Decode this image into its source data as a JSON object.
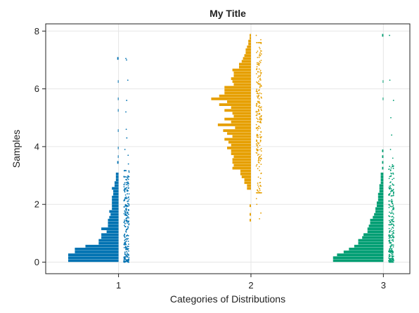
{
  "chart_data": {
    "type": "raincloud",
    "title": "My Title",
    "xlabel": "Categories of Distributions",
    "ylabel": "Samples",
    "categories": [
      "1",
      "2",
      "3"
    ],
    "x_ticks": [
      1,
      2,
      3
    ],
    "y_ticks": [
      0,
      2,
      4,
      6,
      8
    ],
    "xlim": [
      0.45,
      3.2
    ],
    "ylim": [
      -0.4,
      8.25
    ],
    "grid": true,
    "bin_width": 0.1,
    "series": [
      {
        "category": 1,
        "color": "#0072b2",
        "bins": [
          {
            "y": 0.0,
            "width": 0.38
          },
          {
            "y": 0.1,
            "width": 0.38
          },
          {
            "y": 0.2,
            "width": 0.38
          },
          {
            "y": 0.3,
            "width": 0.33
          },
          {
            "y": 0.4,
            "width": 0.33
          },
          {
            "y": 0.5,
            "width": 0.25
          },
          {
            "y": 0.6,
            "width": 0.15
          },
          {
            "y": 0.7,
            "width": 0.15
          },
          {
            "y": 0.8,
            "width": 0.13
          },
          {
            "y": 0.9,
            "width": 0.13
          },
          {
            "y": 1.0,
            "width": 0.09
          },
          {
            "y": 1.1,
            "width": 0.13
          },
          {
            "y": 1.2,
            "width": 0.08
          },
          {
            "y": 1.3,
            "width": 0.08
          },
          {
            "y": 1.4,
            "width": 0.08
          },
          {
            "y": 1.5,
            "width": 0.07
          },
          {
            "y": 1.6,
            "width": 0.06
          },
          {
            "y": 1.7,
            "width": 0.07
          },
          {
            "y": 1.8,
            "width": 0.05
          },
          {
            "y": 1.9,
            "width": 0.05
          },
          {
            "y": 2.0,
            "width": 0.05
          },
          {
            "y": 2.1,
            "width": 0.05
          },
          {
            "y": 2.2,
            "width": 0.05
          },
          {
            "y": 2.3,
            "width": 0.04
          },
          {
            "y": 2.4,
            "width": 0.04
          },
          {
            "y": 2.5,
            "width": 0.05
          },
          {
            "y": 2.6,
            "width": 0.03
          },
          {
            "y": 2.7,
            "width": 0.03
          },
          {
            "y": 2.8,
            "width": 0.02
          },
          {
            "y": 2.9,
            "width": 0.02
          },
          {
            "y": 3.0,
            "width": 0.02
          },
          {
            "y": 3.4,
            "width": 0.01
          },
          {
            "y": 3.6,
            "width": 0.005
          },
          {
            "y": 3.9,
            "width": 0.005
          },
          {
            "y": 4.5,
            "width": 0.005
          },
          {
            "y": 5.2,
            "width": 0.005
          },
          {
            "y": 5.6,
            "width": 0.005
          },
          {
            "y": 6.2,
            "width": 0.005
          },
          {
            "y": 7.0,
            "width": 0.01
          }
        ],
        "dots_dense_range": [
          0.0,
          3.2
        ],
        "dots_sparse": [
          3.4,
          3.7,
          3.9,
          4.3,
          4.6,
          5.2,
          5.6,
          6.3,
          7.0,
          7.05
        ]
      },
      {
        "category": 2,
        "color": "#e69f00",
        "bins": [
          {
            "y": 1.4,
            "width": 0.01
          },
          {
            "y": 1.6,
            "width": 0.01
          },
          {
            "y": 1.9,
            "width": 0.01
          },
          {
            "y": 2.5,
            "width": 0.03
          },
          {
            "y": 2.6,
            "width": 0.03
          },
          {
            "y": 2.7,
            "width": 0.05
          },
          {
            "y": 2.8,
            "width": 0.05
          },
          {
            "y": 2.9,
            "width": 0.07
          },
          {
            "y": 3.0,
            "width": 0.08
          },
          {
            "y": 3.1,
            "width": 0.08
          },
          {
            "y": 3.2,
            "width": 0.14
          },
          {
            "y": 3.3,
            "width": 0.13
          },
          {
            "y": 3.4,
            "width": 0.14
          },
          {
            "y": 3.5,
            "width": 0.14
          },
          {
            "y": 3.6,
            "width": 0.13
          },
          {
            "y": 3.7,
            "width": 0.15
          },
          {
            "y": 3.8,
            "width": 0.15
          },
          {
            "y": 3.9,
            "width": 0.18
          },
          {
            "y": 4.0,
            "width": 0.15
          },
          {
            "y": 4.1,
            "width": 0.17
          },
          {
            "y": 4.2,
            "width": 0.2
          },
          {
            "y": 4.3,
            "width": 0.14
          },
          {
            "y": 4.4,
            "width": 0.18
          },
          {
            "y": 4.5,
            "width": 0.21
          },
          {
            "y": 4.6,
            "width": 0.12
          },
          {
            "y": 4.7,
            "width": 0.25
          },
          {
            "y": 4.8,
            "width": 0.15
          },
          {
            "y": 4.9,
            "width": 0.2
          },
          {
            "y": 5.0,
            "width": 0.13
          },
          {
            "y": 5.1,
            "width": 0.14
          },
          {
            "y": 5.2,
            "width": 0.2
          },
          {
            "y": 5.3,
            "width": 0.15
          },
          {
            "y": 5.4,
            "width": 0.24
          },
          {
            "y": 5.5,
            "width": 0.18
          },
          {
            "y": 5.6,
            "width": 0.3
          },
          {
            "y": 5.7,
            "width": 0.24
          },
          {
            "y": 5.8,
            "width": 0.2
          },
          {
            "y": 5.9,
            "width": 0.2
          },
          {
            "y": 6.0,
            "width": 0.2
          },
          {
            "y": 6.1,
            "width": 0.13
          },
          {
            "y": 6.2,
            "width": 0.14
          },
          {
            "y": 6.3,
            "width": 0.15
          },
          {
            "y": 6.4,
            "width": 0.13
          },
          {
            "y": 6.5,
            "width": 0.13
          },
          {
            "y": 6.6,
            "width": 0.14
          },
          {
            "y": 6.7,
            "width": 0.09
          },
          {
            "y": 6.8,
            "width": 0.09
          },
          {
            "y": 6.9,
            "width": 0.07
          },
          {
            "y": 7.0,
            "width": 0.06
          },
          {
            "y": 7.1,
            "width": 0.05
          },
          {
            "y": 7.2,
            "width": 0.04
          },
          {
            "y": 7.3,
            "width": 0.04
          },
          {
            "y": 7.4,
            "width": 0.03
          },
          {
            "y": 7.5,
            "width": 0.02
          },
          {
            "y": 7.6,
            "width": 0.02
          },
          {
            "y": 7.7,
            "width": 0.01
          },
          {
            "y": 7.8,
            "width": 0.01
          }
        ],
        "dots_dense_range": [
          2.4,
          7.6
        ],
        "dots_sparse": [
          1.5,
          1.7,
          2.0,
          2.2,
          7.7,
          7.85
        ]
      },
      {
        "category": 3,
        "color": "#009e73",
        "bins": [
          {
            "y": 0.0,
            "width": 0.38
          },
          {
            "y": 0.1,
            "width": 0.38
          },
          {
            "y": 0.2,
            "width": 0.35
          },
          {
            "y": 0.3,
            "width": 0.3
          },
          {
            "y": 0.4,
            "width": 0.26
          },
          {
            "y": 0.5,
            "width": 0.22
          },
          {
            "y": 0.6,
            "width": 0.19
          },
          {
            "y": 0.7,
            "width": 0.19
          },
          {
            "y": 0.8,
            "width": 0.16
          },
          {
            "y": 0.9,
            "width": 0.15
          },
          {
            "y": 1.0,
            "width": 0.12
          },
          {
            "y": 1.1,
            "width": 0.12
          },
          {
            "y": 1.2,
            "width": 0.11
          },
          {
            "y": 1.3,
            "width": 0.1
          },
          {
            "y": 1.4,
            "width": 0.1
          },
          {
            "y": 1.5,
            "width": 0.08
          },
          {
            "y": 1.6,
            "width": 0.07
          },
          {
            "y": 1.7,
            "width": 0.06
          },
          {
            "y": 1.8,
            "width": 0.06
          },
          {
            "y": 1.9,
            "width": 0.05
          },
          {
            "y": 2.0,
            "width": 0.05
          },
          {
            "y": 2.1,
            "width": 0.04
          },
          {
            "y": 2.2,
            "width": 0.04
          },
          {
            "y": 2.3,
            "width": 0.04
          },
          {
            "y": 2.4,
            "width": 0.03
          },
          {
            "y": 2.5,
            "width": 0.03
          },
          {
            "y": 2.6,
            "width": 0.03
          },
          {
            "y": 2.7,
            "width": 0.02
          },
          {
            "y": 2.8,
            "width": 0.02
          },
          {
            "y": 2.9,
            "width": 0.02
          },
          {
            "y": 3.0,
            "width": 0.02
          },
          {
            "y": 3.2,
            "width": 0.01
          },
          {
            "y": 3.4,
            "width": 0.01
          },
          {
            "y": 3.6,
            "width": 0.01
          },
          {
            "y": 3.8,
            "width": 0.01
          },
          {
            "y": 5.6,
            "width": 0.005
          },
          {
            "y": 6.2,
            "width": 0.005
          },
          {
            "y": 7.8,
            "width": 0.01
          }
        ],
        "dots_dense_range": [
          0.0,
          3.4
        ],
        "dots_sparse": [
          3.6,
          3.9,
          4.4,
          5.0,
          5.6,
          6.3,
          7.85
        ]
      }
    ]
  }
}
